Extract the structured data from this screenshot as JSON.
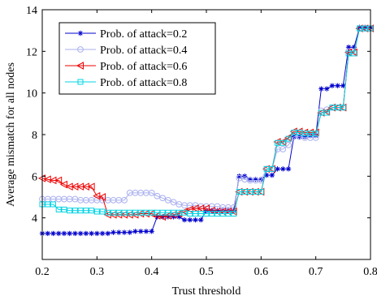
{
  "chart_data": {
    "type": "line",
    "title": "",
    "xlabel": "Trust threshold",
    "ylabel": "Average mismatch for all nodes",
    "xlim": [
      0.2,
      0.8
    ],
    "ylim": [
      2,
      14
    ],
    "xticks": [
      "0.2",
      "0.3",
      "0.4",
      "0.5",
      "0.6",
      "0.7",
      "0.8"
    ],
    "yticks": [
      "4",
      "6",
      "8",
      "10",
      "12",
      "14"
    ],
    "grid": false,
    "legend_position": "top-left",
    "series": [
      {
        "name": "Prob. of attack=0.2",
        "color": "#0000cc",
        "marker": "star",
        "x": [
          0.2,
          0.21,
          0.22,
          0.23,
          0.24,
          0.25,
          0.26,
          0.27,
          0.28,
          0.29,
          0.3,
          0.31,
          0.32,
          0.33,
          0.34,
          0.35,
          0.36,
          0.37,
          0.38,
          0.39,
          0.4,
          0.41,
          0.42,
          0.43,
          0.44,
          0.45,
          0.46,
          0.47,
          0.48,
          0.49,
          0.5,
          0.51,
          0.52,
          0.53,
          0.54,
          0.55,
          0.56,
          0.57,
          0.58,
          0.59,
          0.6,
          0.61,
          0.62,
          0.63,
          0.64,
          0.65,
          0.66,
          0.67,
          0.68,
          0.69,
          0.7,
          0.71,
          0.72,
          0.73,
          0.74,
          0.75,
          0.76,
          0.77,
          0.78,
          0.79,
          0.8
        ],
        "y": [
          3.25,
          3.25,
          3.25,
          3.25,
          3.25,
          3.25,
          3.25,
          3.25,
          3.25,
          3.25,
          3.25,
          3.25,
          3.25,
          3.3,
          3.3,
          3.3,
          3.3,
          3.35,
          3.35,
          3.35,
          3.35,
          4.05,
          4.05,
          4.05,
          4.05,
          4.05,
          3.9,
          3.9,
          3.9,
          3.9,
          4.35,
          4.35,
          4.35,
          4.35,
          4.35,
          4.35,
          6.0,
          6.0,
          5.85,
          5.85,
          5.85,
          6.05,
          6.05,
          6.35,
          6.35,
          6.35,
          7.9,
          7.9,
          7.9,
          7.95,
          7.95,
          10.2,
          10.2,
          10.35,
          10.35,
          10.35,
          12.2,
          12.2,
          13.15,
          13.15,
          13.15
        ]
      },
      {
        "name": "Prob. of attack=0.4",
        "color": "#aab0ee",
        "marker": "circle",
        "x": [
          0.2,
          0.21,
          0.22,
          0.23,
          0.24,
          0.25,
          0.26,
          0.27,
          0.28,
          0.29,
          0.3,
          0.31,
          0.32,
          0.33,
          0.34,
          0.35,
          0.36,
          0.37,
          0.38,
          0.39,
          0.4,
          0.41,
          0.42,
          0.43,
          0.44,
          0.45,
          0.46,
          0.47,
          0.48,
          0.49,
          0.5,
          0.51,
          0.52,
          0.53,
          0.54,
          0.55,
          0.56,
          0.57,
          0.58,
          0.59,
          0.6,
          0.61,
          0.62,
          0.63,
          0.64,
          0.65,
          0.66,
          0.67,
          0.68,
          0.69,
          0.7,
          0.71,
          0.72,
          0.73,
          0.74,
          0.75,
          0.76,
          0.77,
          0.78,
          0.79,
          0.8
        ],
        "y": [
          4.9,
          4.9,
          4.9,
          4.9,
          4.9,
          4.9,
          4.9,
          4.85,
          4.85,
          4.85,
          4.85,
          4.85,
          4.85,
          4.85,
          4.85,
          4.85,
          5.2,
          5.2,
          5.2,
          5.2,
          5.2,
          5.05,
          4.95,
          4.85,
          4.75,
          4.65,
          4.6,
          4.6,
          4.6,
          4.55,
          4.55,
          4.55,
          4.55,
          4.5,
          4.5,
          4.5,
          5.9,
          5.85,
          5.8,
          5.8,
          5.8,
          6.35,
          6.35,
          7.3,
          7.3,
          7.5,
          7.9,
          7.9,
          7.85,
          7.85,
          7.85,
          9.15,
          9.2,
          9.3,
          9.3,
          9.3,
          12.0,
          12.0,
          13.1,
          13.1,
          13.1
        ]
      },
      {
        "name": "Prob. of attack=0.6",
        "color": "#ee0000",
        "marker": "triangle-left",
        "x": [
          0.2,
          0.21,
          0.22,
          0.23,
          0.24,
          0.25,
          0.26,
          0.27,
          0.28,
          0.29,
          0.3,
          0.31,
          0.32,
          0.33,
          0.34,
          0.35,
          0.36,
          0.37,
          0.38,
          0.39,
          0.4,
          0.41,
          0.42,
          0.43,
          0.44,
          0.45,
          0.46,
          0.47,
          0.48,
          0.49,
          0.5,
          0.51,
          0.52,
          0.53,
          0.54,
          0.55,
          0.56,
          0.57,
          0.58,
          0.59,
          0.6,
          0.61,
          0.62,
          0.63,
          0.64,
          0.65,
          0.66,
          0.67,
          0.68,
          0.69,
          0.7,
          0.71,
          0.72,
          0.73,
          0.74,
          0.75,
          0.76,
          0.77,
          0.78,
          0.79,
          0.8
        ],
        "y": [
          5.9,
          5.85,
          5.8,
          5.8,
          5.6,
          5.5,
          5.5,
          5.5,
          5.5,
          5.5,
          5.05,
          5.0,
          4.15,
          4.15,
          4.15,
          4.15,
          4.15,
          4.15,
          4.2,
          4.2,
          4.2,
          4.1,
          4.05,
          4.1,
          4.15,
          4.2,
          4.3,
          4.4,
          4.45,
          4.45,
          4.45,
          4.35,
          4.3,
          4.3,
          4.3,
          4.3,
          5.25,
          5.25,
          5.25,
          5.25,
          5.25,
          6.35,
          6.35,
          7.65,
          7.65,
          7.85,
          8.15,
          8.15,
          8.1,
          8.1,
          8.1,
          9.05,
          9.1,
          9.3,
          9.3,
          9.3,
          11.95,
          11.95,
          13.1,
          13.1,
          13.1
        ]
      },
      {
        "name": "Prob. of attack=0.8",
        "color": "#00d4e4",
        "marker": "square",
        "x": [
          0.2,
          0.21,
          0.22,
          0.23,
          0.24,
          0.25,
          0.26,
          0.27,
          0.28,
          0.29,
          0.3,
          0.31,
          0.32,
          0.33,
          0.34,
          0.35,
          0.36,
          0.37,
          0.38,
          0.39,
          0.4,
          0.41,
          0.42,
          0.43,
          0.44,
          0.45,
          0.46,
          0.47,
          0.48,
          0.49,
          0.5,
          0.51,
          0.52,
          0.53,
          0.54,
          0.55,
          0.56,
          0.57,
          0.58,
          0.59,
          0.6,
          0.61,
          0.62,
          0.63,
          0.64,
          0.65,
          0.66,
          0.67,
          0.68,
          0.69,
          0.7,
          0.71,
          0.72,
          0.73,
          0.74,
          0.75,
          0.76,
          0.77,
          0.78,
          0.79,
          0.8
        ],
        "y": [
          4.65,
          4.65,
          4.65,
          4.4,
          4.4,
          4.35,
          4.35,
          4.35,
          4.35,
          4.35,
          4.3,
          4.3,
          4.25,
          4.25,
          4.25,
          4.25,
          4.25,
          4.25,
          4.25,
          4.25,
          4.25,
          4.25,
          4.25,
          4.25,
          4.25,
          4.25,
          4.25,
          4.2,
          4.2,
          4.2,
          4.2,
          4.2,
          4.2,
          4.2,
          4.2,
          4.2,
          5.25,
          5.25,
          5.25,
          5.25,
          5.25,
          6.35,
          6.35,
          7.6,
          7.6,
          7.8,
          8.1,
          8.1,
          8.05,
          8.05,
          8.05,
          9.05,
          9.05,
          9.3,
          9.3,
          9.3,
          11.9,
          11.9,
          13.1,
          13.1,
          13.1
        ]
      }
    ]
  }
}
